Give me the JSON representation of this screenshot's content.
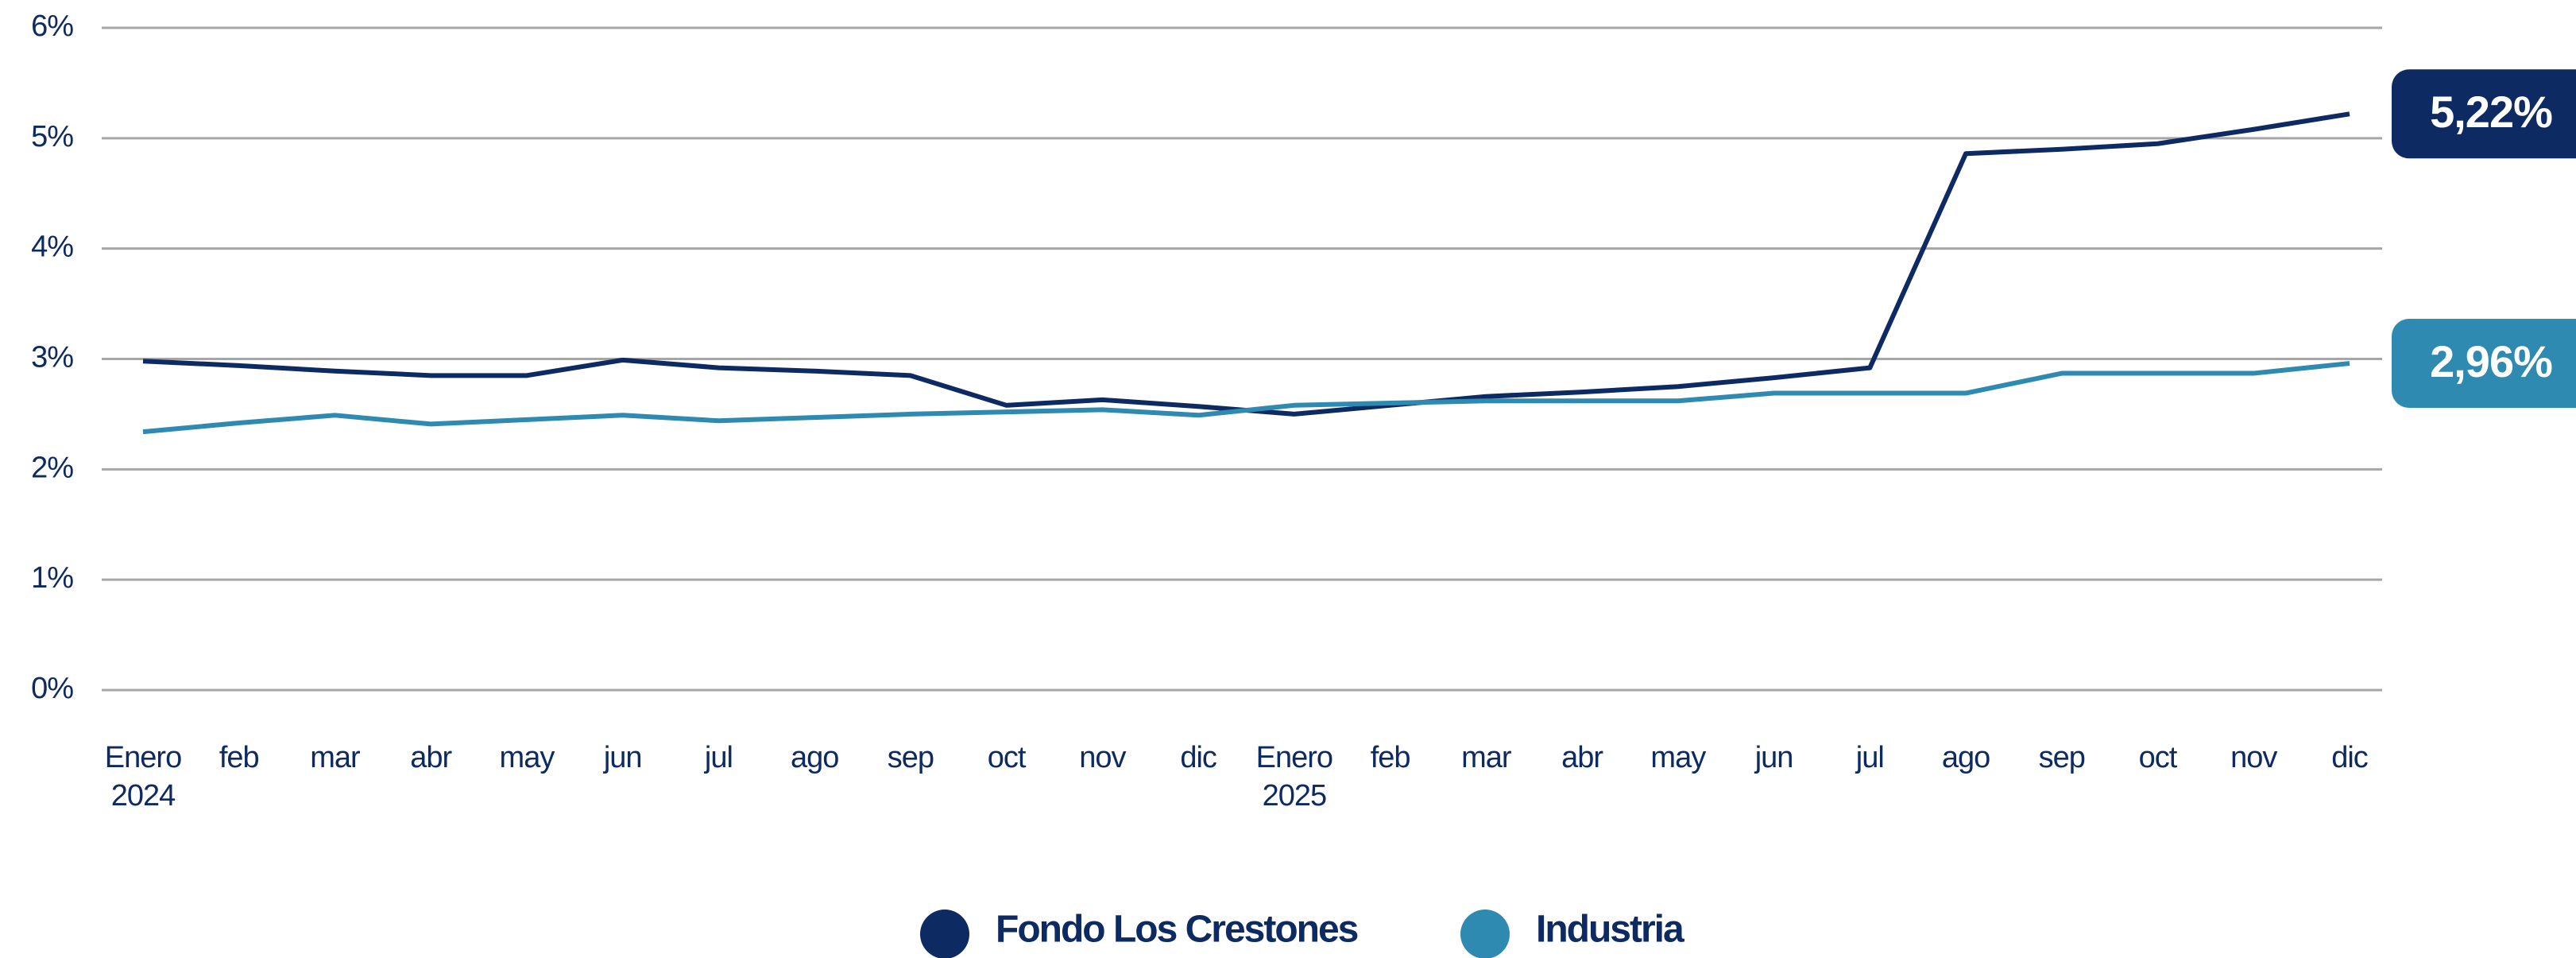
{
  "chart_data": {
    "type": "line",
    "categories": [
      "Enero\n2024",
      "feb",
      "mar",
      "abr",
      "may",
      "jun",
      "jul",
      "ago",
      "sep",
      "oct",
      "nov",
      "dic",
      "Enero\n2025",
      "feb",
      "mar",
      "abr",
      "may",
      "jun",
      "jul",
      "ago",
      "sep",
      "oct",
      "nov",
      "dic"
    ],
    "series": [
      {
        "name": "Fondo Los Crestones",
        "color": "#0d2a63",
        "last_label": "5,22%",
        "values": [
          2.98,
          2.94,
          2.89,
          2.85,
          2.85,
          2.99,
          2.92,
          2.89,
          2.85,
          2.58,
          2.63,
          2.57,
          2.5,
          2.58,
          2.66,
          2.7,
          2.75,
          2.83,
          2.92,
          4.86,
          4.9,
          4.95,
          5.08,
          5.22
        ]
      },
      {
        "name": "Industria",
        "color": "#2e8ab0",
        "last_label": "2,96%",
        "values": [
          2.34,
          2.42,
          2.49,
          2.41,
          2.45,
          2.49,
          2.44,
          2.47,
          2.5,
          2.52,
          2.54,
          2.49,
          2.58,
          2.6,
          2.62,
          2.62,
          2.62,
          2.69,
          2.69,
          2.69,
          2.87,
          2.87,
          2.87,
          2.96
        ]
      }
    ],
    "ylim": [
      0,
      6
    ],
    "yticks": [
      {
        "value": 0,
        "label": "0%"
      },
      {
        "value": 1,
        "label": "1%"
      },
      {
        "value": 2,
        "label": "2%"
      },
      {
        "value": 3,
        "label": "3%"
      },
      {
        "value": 4,
        "label": "4%"
      },
      {
        "value": 5,
        "label": "5%"
      },
      {
        "value": 6,
        "label": "6%"
      }
    ],
    "grid": true
  }
}
